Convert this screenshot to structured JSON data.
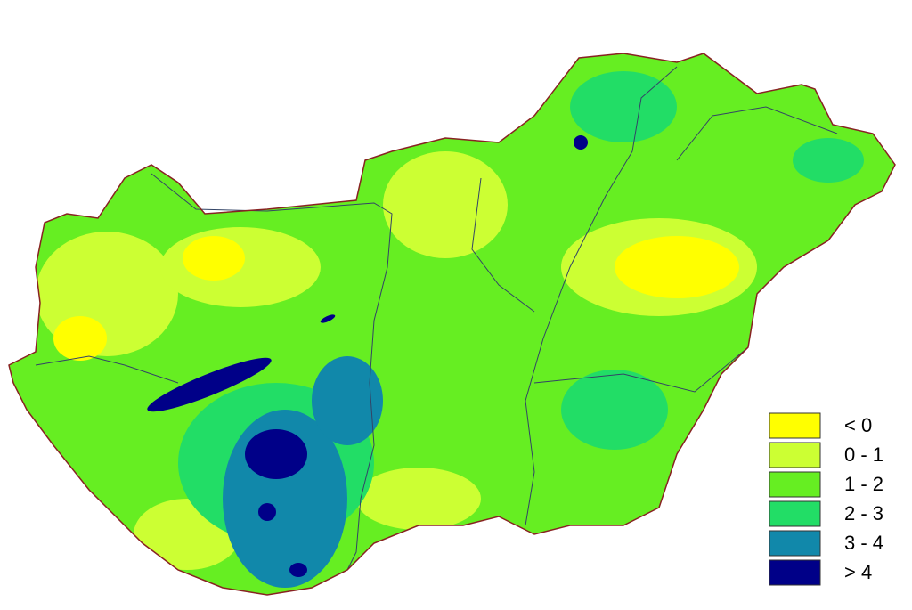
{
  "legend": {
    "items": [
      {
        "label": "< 0",
        "color": "#ffff00"
      },
      {
        "label": "0 - 1",
        "color": "#ccff33"
      },
      {
        "label": "1 - 2",
        "color": "#66ee22"
      },
      {
        "label": "2 - 3",
        "color": "#22dd66"
      },
      {
        "label": "3 - 4",
        "color": "#1188aa"
      },
      {
        "label": "> 4",
        "color": "#000088"
      }
    ]
  }
}
